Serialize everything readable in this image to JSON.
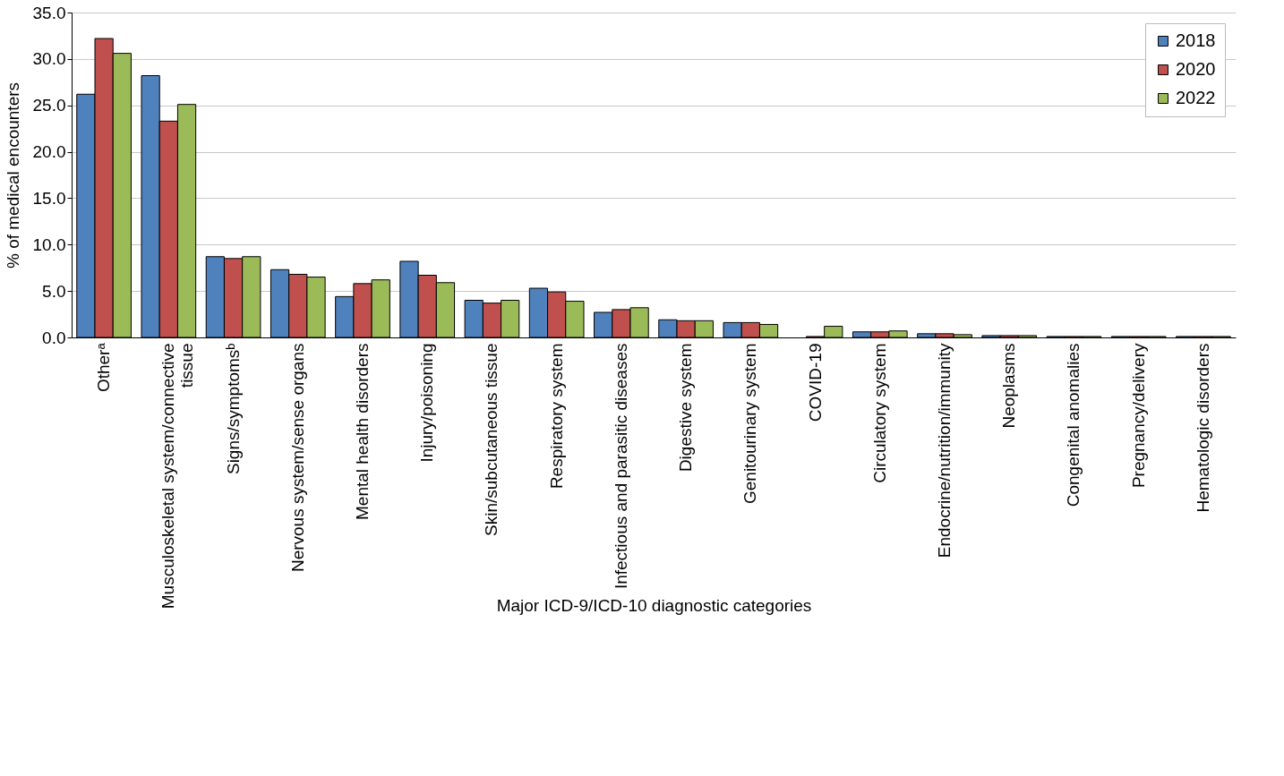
{
  "chart_data": {
    "type": "bar",
    "xlabel": "Major ICD-9/ICD-10 diagnostic categories",
    "ylabel": "% of medical encounters",
    "categories": [
      "Otherᵃ",
      "Musculoskeletal system/connective tissue",
      "Signs/symptomsᵇ",
      "Nervous system/sense organs",
      "Mental health disorders",
      "Injury/poisoning",
      "Skin/subcutaneous tissue",
      "Respiratory system",
      "Infectious and parasitic diseases",
      "Digestive system",
      "Genitourinary system",
      "COVID-19",
      "Circulatory system",
      "Endocrine/nutrition/immunity",
      "Neoplasms",
      "Congenital anomalies",
      "Pregnancy/delivery",
      "Hematologic disorders"
    ],
    "series": [
      {
        "name": "2018",
        "color": "#4f81bd",
        "values": [
          26.2,
          28.2,
          8.7,
          7.3,
          4.4,
          8.2,
          4.0,
          5.3,
          2.7,
          1.9,
          1.6,
          null,
          0.6,
          0.4,
          0.2,
          0.1,
          0.1,
          0.1
        ]
      },
      {
        "name": "2020",
        "color": "#c0504d",
        "values": [
          32.2,
          23.3,
          8.5,
          6.8,
          5.8,
          6.7,
          3.7,
          4.9,
          3.0,
          1.8,
          1.6,
          0.1,
          0.6,
          0.4,
          0.2,
          0.1,
          0.1,
          0.1
        ]
      },
      {
        "name": "2022",
        "color": "#9bbb59",
        "values": [
          30.6,
          25.1,
          8.7,
          6.5,
          6.2,
          5.9,
          4.0,
          3.9,
          3.2,
          1.8,
          1.4,
          1.2,
          0.7,
          0.3,
          0.2,
          0.1,
          0.1,
          0.1
        ]
      }
    ],
    "ylim": [
      0,
      35
    ],
    "yticks": [
      {
        "value": 0,
        "label": "0.0"
      },
      {
        "value": 5,
        "label": "5.0"
      },
      {
        "value": 10,
        "label": "10.0"
      },
      {
        "value": 15,
        "label": "15.0"
      },
      {
        "value": 20,
        "label": "20.0"
      },
      {
        "value": 25,
        "label": "25.0"
      },
      {
        "value": 30,
        "label": "30.0"
      },
      {
        "value": 35,
        "label": "35.0"
      }
    ],
    "grid": "y",
    "legend": "top right"
  }
}
